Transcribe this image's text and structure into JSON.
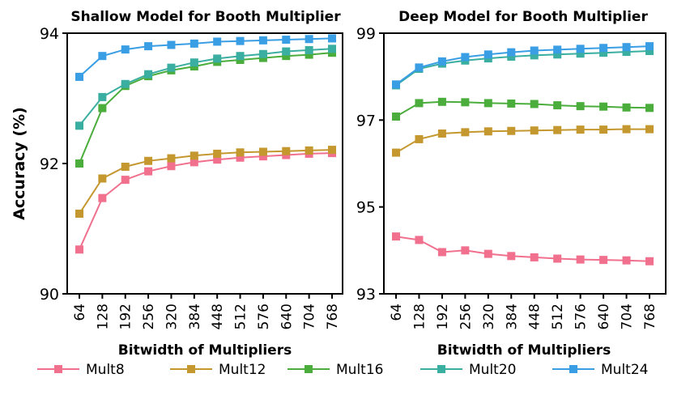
{
  "chart_data": [
    {
      "type": "line",
      "title": "Shallow Model for Booth Multiplier",
      "xlabel": "Bitwidth of Multipliers",
      "ylabel": "Accuracy (%)",
      "ylim": [
        90,
        94
      ],
      "yticks": [
        "90",
        "92",
        "94"
      ],
      "ytick_values": [
        90,
        92,
        94
      ],
      "categories": [
        "64",
        "128",
        "192",
        "256",
        "320",
        "384",
        "448",
        "512",
        "576",
        "640",
        "704",
        "768"
      ],
      "series": [
        {
          "name": "Mult8",
          "values": [
            90.68,
            91.47,
            91.75,
            91.88,
            91.96,
            92.02,
            92.06,
            92.09,
            92.11,
            92.13,
            92.15,
            92.16
          ]
        },
        {
          "name": "Mult12",
          "values": [
            91.23,
            91.77,
            91.95,
            92.04,
            92.08,
            92.12,
            92.15,
            92.17,
            92.18,
            92.19,
            92.2,
            92.21
          ]
        },
        {
          "name": "Mult16",
          "values": [
            92.0,
            92.85,
            93.19,
            93.34,
            93.43,
            93.49,
            93.56,
            93.59,
            93.62,
            93.65,
            93.67,
            93.7
          ]
        },
        {
          "name": "Mult20",
          "values": [
            92.58,
            93.02,
            93.22,
            93.37,
            93.47,
            93.55,
            93.61,
            93.65,
            93.68,
            93.72,
            93.74,
            93.76
          ]
        },
        {
          "name": "Mult24",
          "values": [
            93.33,
            93.65,
            93.75,
            93.8,
            93.82,
            93.84,
            93.87,
            93.88,
            93.89,
            93.9,
            93.91,
            93.92
          ]
        }
      ]
    },
    {
      "type": "line",
      "title": "Deep Model for Booth Multiplier",
      "xlabel": "Bitwidth of Multipliers",
      "ylabel": "",
      "ylim": [
        93,
        99
      ],
      "yticks": [
        "93",
        "95",
        "97",
        "99"
      ],
      "ytick_values": [
        93,
        95,
        97,
        99
      ],
      "categories": [
        "64",
        "128",
        "192",
        "256",
        "320",
        "384",
        "448",
        "512",
        "576",
        "640",
        "704",
        "768"
      ],
      "series": [
        {
          "name": "Mult8",
          "values": [
            94.32,
            94.24,
            93.96,
            94.0,
            93.92,
            93.87,
            93.84,
            93.81,
            93.79,
            93.78,
            93.77,
            93.75
          ]
        },
        {
          "name": "Mult12",
          "values": [
            96.25,
            96.56,
            96.69,
            96.72,
            96.74,
            96.75,
            96.76,
            96.77,
            96.78,
            96.78,
            96.79,
            96.79
          ]
        },
        {
          "name": "Mult16",
          "values": [
            97.08,
            97.39,
            97.42,
            97.41,
            97.39,
            97.38,
            97.37,
            97.34,
            97.32,
            97.31,
            97.29,
            97.28
          ]
        },
        {
          "name": "Mult20",
          "values": [
            97.8,
            98.18,
            98.3,
            98.37,
            98.42,
            98.46,
            98.49,
            98.51,
            98.53,
            98.55,
            98.57,
            98.59
          ]
        },
        {
          "name": "Mult24",
          "values": [
            97.82,
            98.21,
            98.35,
            98.45,
            98.51,
            98.56,
            98.6,
            98.62,
            98.64,
            98.66,
            98.68,
            98.7
          ]
        }
      ]
    }
  ],
  "legend": {
    "placement": "bottom",
    "items": [
      {
        "name": "Mult8",
        "color": "#f0708e"
      },
      {
        "name": "Mult12",
        "color": "#c4982f"
      },
      {
        "name": "Mult16",
        "color": "#4aad3c"
      },
      {
        "name": "Mult20",
        "color": "#3aaea0"
      },
      {
        "name": "Mult24",
        "color": "#3a9ee4"
      }
    ]
  }
}
